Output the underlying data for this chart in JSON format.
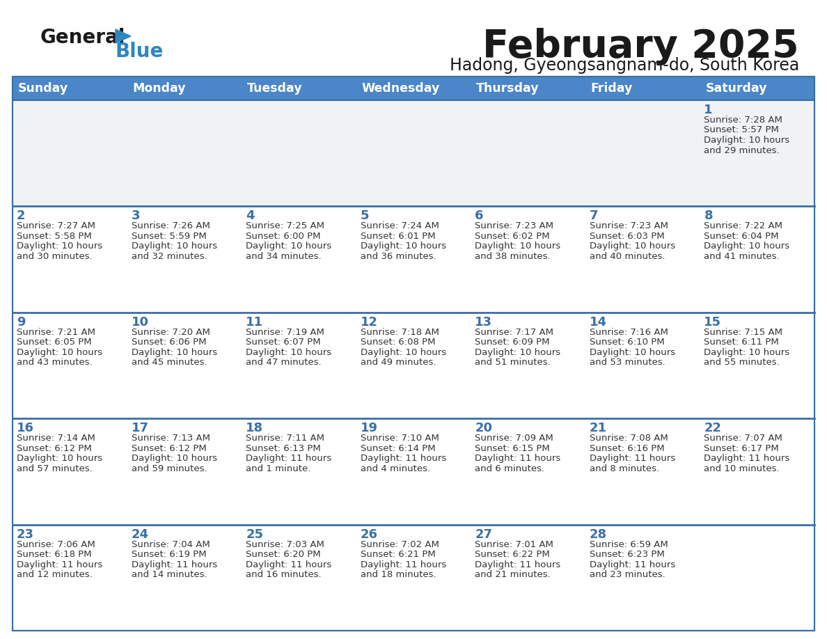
{
  "title": "February 2025",
  "subtitle": "Hadong, Gyeongsangnam-do, South Korea",
  "days_of_week": [
    "Sunday",
    "Monday",
    "Tuesday",
    "Wednesday",
    "Thursday",
    "Friday",
    "Saturday"
  ],
  "header_bg": "#4a86c8",
  "header_text_color": "#FFFFFF",
  "cell_bg_white": "#FFFFFF",
  "cell_bg_gray": "#f0f2f5",
  "row_line_color": "#3a6fa8",
  "title_color": "#1a1a1a",
  "subtitle_color": "#1a1a1a",
  "day_number_color": "#3a6fa8",
  "cell_text_color": "#333333",
  "logo_general_color": "#1a1a1a",
  "logo_blue_color": "#2E86C1",
  "outer_border_color": "#3a6fa8",
  "calendar_data": [
    [
      {
        "day": null,
        "info": ""
      },
      {
        "day": null,
        "info": ""
      },
      {
        "day": null,
        "info": ""
      },
      {
        "day": null,
        "info": ""
      },
      {
        "day": null,
        "info": ""
      },
      {
        "day": null,
        "info": ""
      },
      {
        "day": 1,
        "info": "Sunrise: 7:28 AM\nSunset: 5:57 PM\nDaylight: 10 hours\nand 29 minutes."
      }
    ],
    [
      {
        "day": 2,
        "info": "Sunrise: 7:27 AM\nSunset: 5:58 PM\nDaylight: 10 hours\nand 30 minutes."
      },
      {
        "day": 3,
        "info": "Sunrise: 7:26 AM\nSunset: 5:59 PM\nDaylight: 10 hours\nand 32 minutes."
      },
      {
        "day": 4,
        "info": "Sunrise: 7:25 AM\nSunset: 6:00 PM\nDaylight: 10 hours\nand 34 minutes."
      },
      {
        "day": 5,
        "info": "Sunrise: 7:24 AM\nSunset: 6:01 PM\nDaylight: 10 hours\nand 36 minutes."
      },
      {
        "day": 6,
        "info": "Sunrise: 7:23 AM\nSunset: 6:02 PM\nDaylight: 10 hours\nand 38 minutes."
      },
      {
        "day": 7,
        "info": "Sunrise: 7:23 AM\nSunset: 6:03 PM\nDaylight: 10 hours\nand 40 minutes."
      },
      {
        "day": 8,
        "info": "Sunrise: 7:22 AM\nSunset: 6:04 PM\nDaylight: 10 hours\nand 41 minutes."
      }
    ],
    [
      {
        "day": 9,
        "info": "Sunrise: 7:21 AM\nSunset: 6:05 PM\nDaylight: 10 hours\nand 43 minutes."
      },
      {
        "day": 10,
        "info": "Sunrise: 7:20 AM\nSunset: 6:06 PM\nDaylight: 10 hours\nand 45 minutes."
      },
      {
        "day": 11,
        "info": "Sunrise: 7:19 AM\nSunset: 6:07 PM\nDaylight: 10 hours\nand 47 minutes."
      },
      {
        "day": 12,
        "info": "Sunrise: 7:18 AM\nSunset: 6:08 PM\nDaylight: 10 hours\nand 49 minutes."
      },
      {
        "day": 13,
        "info": "Sunrise: 7:17 AM\nSunset: 6:09 PM\nDaylight: 10 hours\nand 51 minutes."
      },
      {
        "day": 14,
        "info": "Sunrise: 7:16 AM\nSunset: 6:10 PM\nDaylight: 10 hours\nand 53 minutes."
      },
      {
        "day": 15,
        "info": "Sunrise: 7:15 AM\nSunset: 6:11 PM\nDaylight: 10 hours\nand 55 minutes."
      }
    ],
    [
      {
        "day": 16,
        "info": "Sunrise: 7:14 AM\nSunset: 6:12 PM\nDaylight: 10 hours\nand 57 minutes."
      },
      {
        "day": 17,
        "info": "Sunrise: 7:13 AM\nSunset: 6:12 PM\nDaylight: 10 hours\nand 59 minutes."
      },
      {
        "day": 18,
        "info": "Sunrise: 7:11 AM\nSunset: 6:13 PM\nDaylight: 11 hours\nand 1 minute."
      },
      {
        "day": 19,
        "info": "Sunrise: 7:10 AM\nSunset: 6:14 PM\nDaylight: 11 hours\nand 4 minutes."
      },
      {
        "day": 20,
        "info": "Sunrise: 7:09 AM\nSunset: 6:15 PM\nDaylight: 11 hours\nand 6 minutes."
      },
      {
        "day": 21,
        "info": "Sunrise: 7:08 AM\nSunset: 6:16 PM\nDaylight: 11 hours\nand 8 minutes."
      },
      {
        "day": 22,
        "info": "Sunrise: 7:07 AM\nSunset: 6:17 PM\nDaylight: 11 hours\nand 10 minutes."
      }
    ],
    [
      {
        "day": 23,
        "info": "Sunrise: 7:06 AM\nSunset: 6:18 PM\nDaylight: 11 hours\nand 12 minutes."
      },
      {
        "day": 24,
        "info": "Sunrise: 7:04 AM\nSunset: 6:19 PM\nDaylight: 11 hours\nand 14 minutes."
      },
      {
        "day": 25,
        "info": "Sunrise: 7:03 AM\nSunset: 6:20 PM\nDaylight: 11 hours\nand 16 minutes."
      },
      {
        "day": 26,
        "info": "Sunrise: 7:02 AM\nSunset: 6:21 PM\nDaylight: 11 hours\nand 18 minutes."
      },
      {
        "day": 27,
        "info": "Sunrise: 7:01 AM\nSunset: 6:22 PM\nDaylight: 11 hours\nand 21 minutes."
      },
      {
        "day": 28,
        "info": "Sunrise: 6:59 AM\nSunset: 6:23 PM\nDaylight: 11 hours\nand 23 minutes."
      },
      {
        "day": null,
        "info": ""
      }
    ]
  ]
}
